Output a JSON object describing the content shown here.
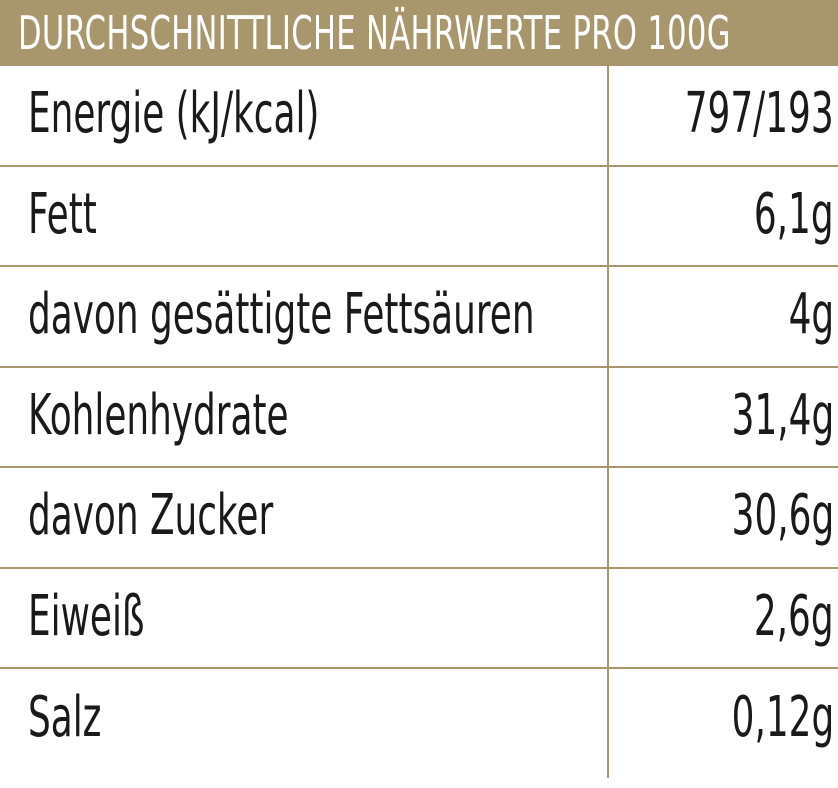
{
  "header": {
    "title": "DURCHSCHNITTLICHE NÄHRWERTE PRO 100G"
  },
  "rows": [
    {
      "label": "Energie (kJ/kcal)",
      "value": "797/193"
    },
    {
      "label": "Fett",
      "value": "6,1g"
    },
    {
      "label": "davon gesättigte Fettsäuren",
      "value": "4g"
    },
    {
      "label": "Kohlenhydrate",
      "value": "31,4g"
    },
    {
      "label": "davon Zucker",
      "value": "30,6g"
    },
    {
      "label": "Eiweiß",
      "value": "2,6g"
    },
    {
      "label": "Salz",
      "value": "0,12g"
    }
  ],
  "colors": {
    "accent": "#a8976d",
    "text": "#1a1a1a",
    "background": "#ffffff"
  }
}
